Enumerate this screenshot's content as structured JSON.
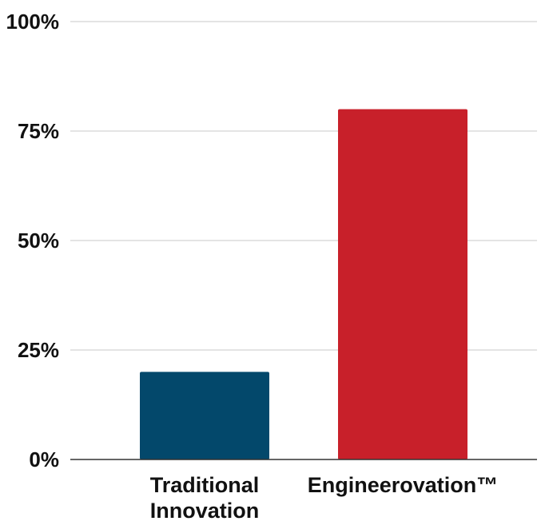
{
  "chart_data": {
    "type": "bar",
    "title": "",
    "xlabel": "",
    "ylabel": "",
    "categories": [
      [
        "Traditional",
        "Innovation"
      ],
      [
        "Engineerovation™"
      ]
    ],
    "values": [
      20,
      80
    ],
    "colors": [
      "#03486b",
      "#c8202a"
    ],
    "ylim": [
      0,
      100
    ],
    "yticks": [
      0,
      25,
      50,
      75,
      100
    ],
    "ytick_labels": [
      "0%",
      "25%",
      "50%",
      "75%",
      "100%"
    ],
    "grid": true,
    "legend": "none"
  }
}
